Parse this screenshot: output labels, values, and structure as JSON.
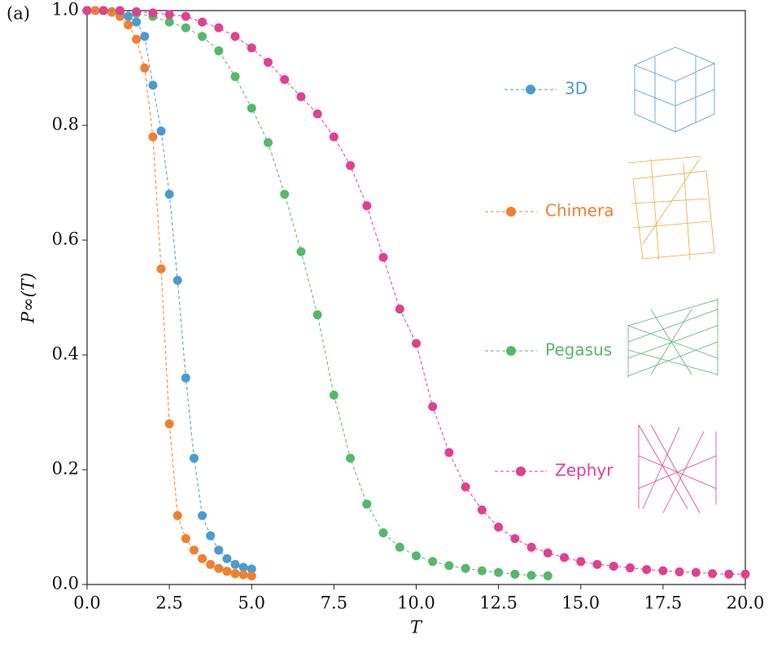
{
  "chart_data": {
    "type": "line",
    "panel_label": "(a)",
    "xlabel": "T",
    "ylabel": "P∞(T)",
    "xlim": [
      0,
      20
    ],
    "ylim": [
      0,
      1
    ],
    "xticks": [
      {
        "value": 0,
        "label": "0.0"
      },
      {
        "value": 2.5,
        "label": "2.5"
      },
      {
        "value": 5,
        "label": "5.0"
      },
      {
        "value": 7.5,
        "label": "7.5"
      },
      {
        "value": 10,
        "label": "10.0"
      },
      {
        "value": 12.5,
        "label": "12.5"
      },
      {
        "value": 15,
        "label": "15.0"
      },
      {
        "value": 17.5,
        "label": "17.5"
      },
      {
        "value": 20,
        "label": "20.0"
      }
    ],
    "yticks": [
      {
        "value": 0,
        "label": "0.0"
      },
      {
        "value": 0.2,
        "label": "0.2"
      },
      {
        "value": 0.4,
        "label": "0.4"
      },
      {
        "value": 0.6,
        "label": "0.6"
      },
      {
        "value": 0.8,
        "label": "0.8"
      },
      {
        "value": 1,
        "label": "1.0"
      }
    ],
    "grid": false,
    "series": [
      {
        "name": "3D",
        "color": "#4a9bd0",
        "x": [
          0,
          0.25,
          0.5,
          0.75,
          1,
          1.25,
          1.5,
          1.75,
          2,
          2.25,
          2.5,
          2.75,
          3,
          3.25,
          3.5,
          3.75,
          4,
          4.25,
          4.5,
          4.75,
          5
        ],
        "values": [
          1,
          1,
          1,
          0.998,
          0.995,
          0.99,
          0.98,
          0.955,
          0.87,
          0.79,
          0.68,
          0.53,
          0.36,
          0.22,
          0.12,
          0.085,
          0.06,
          0.045,
          0.035,
          0.03,
          0.027
        ]
      },
      {
        "name": "Chimera",
        "color": "#f0802e",
        "x": [
          0,
          0.25,
          0.5,
          0.75,
          1,
          1.25,
          1.5,
          1.75,
          2,
          2.25,
          2.5,
          2.75,
          3,
          3.25,
          3.5,
          3.75,
          4,
          4.25,
          4.5,
          4.75,
          5
        ],
        "values": [
          1,
          1,
          1,
          0.997,
          0.99,
          0.975,
          0.95,
          0.9,
          0.78,
          0.55,
          0.28,
          0.12,
          0.08,
          0.06,
          0.045,
          0.035,
          0.028,
          0.023,
          0.019,
          0.017,
          0.015
        ]
      },
      {
        "name": "Pegasus",
        "color": "#56b86a",
        "x": [
          0,
          0.5,
          1,
          1.5,
          2,
          2.5,
          3,
          3.5,
          4,
          4.5,
          5,
          5.5,
          6,
          6.5,
          7,
          7.5,
          8,
          8.5,
          9,
          9.5,
          10,
          10.5,
          11,
          11.5,
          12,
          12.5,
          13,
          13.5,
          14
        ],
        "values": [
          1,
          1,
          0.998,
          0.995,
          0.99,
          0.98,
          0.97,
          0.955,
          0.93,
          0.885,
          0.83,
          0.77,
          0.68,
          0.58,
          0.47,
          0.33,
          0.22,
          0.14,
          0.09,
          0.065,
          0.05,
          0.04,
          0.033,
          0.028,
          0.024,
          0.021,
          0.018,
          0.016,
          0.015
        ]
      },
      {
        "name": "Zephyr",
        "color": "#e0408f",
        "x": [
          0,
          0.5,
          1,
          1.5,
          2,
          2.5,
          3,
          3.5,
          4,
          4.5,
          5,
          5.5,
          6,
          6.5,
          7,
          7.5,
          8,
          8.5,
          9,
          9.5,
          10,
          10.5,
          11,
          11.5,
          12,
          12.5,
          13,
          13.5,
          14,
          14.5,
          15,
          15.5,
          16,
          16.5,
          17,
          17.5,
          18,
          18.5,
          19,
          19.5,
          20
        ],
        "values": [
          1,
          1,
          1,
          0.998,
          0.996,
          0.993,
          0.99,
          0.98,
          0.97,
          0.955,
          0.935,
          0.91,
          0.88,
          0.85,
          0.82,
          0.78,
          0.73,
          0.66,
          0.57,
          0.48,
          0.42,
          0.31,
          0.23,
          0.17,
          0.13,
          0.1,
          0.08,
          0.065,
          0.055,
          0.047,
          0.04,
          0.035,
          0.032,
          0.029,
          0.026,
          0.024,
          0.022,
          0.021,
          0.019,
          0.018,
          0.018
        ]
      }
    ]
  }
}
